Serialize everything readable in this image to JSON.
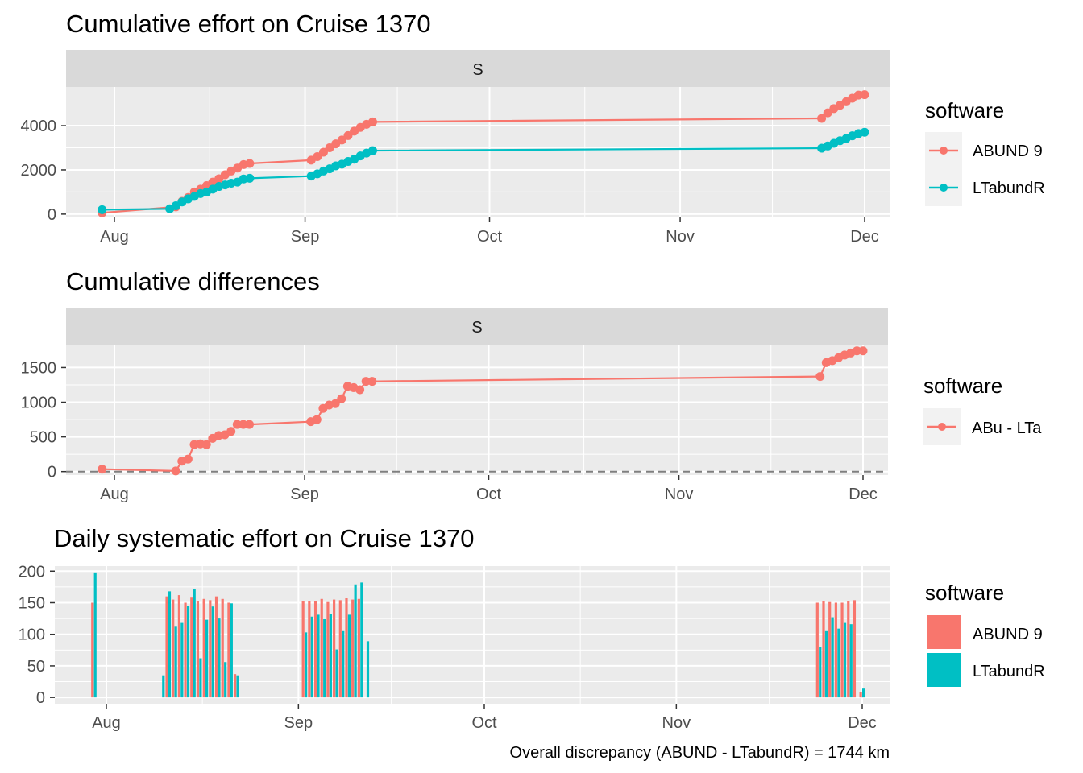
{
  "colors": {
    "abund": "#F8766D",
    "ltabundr": "#00BFC4",
    "panel_bg": "#EBEBEB",
    "strip_bg": "#D9D9D9",
    "grid": "#FFFFFF"
  },
  "chart_data": [
    {
      "type": "line",
      "title": "Cumulative effort on Cruise 1370",
      "facet": "S",
      "x_ticks": [
        "Aug",
        "Sep",
        "Oct",
        "Nov",
        "Dec"
      ],
      "y_ticks": [
        0,
        2000,
        4000
      ],
      "ylim": [
        -150,
        5750
      ],
      "legend": {
        "title": "software",
        "position": "right"
      },
      "series": [
        {
          "name": "ABUND 9",
          "color": "#F8766D",
          "x": [
            "2020-07-30",
            "2020-08-11",
            "2020-08-12",
            "2020-08-13",
            "2020-08-14",
            "2020-08-15",
            "2020-08-16",
            "2020-08-17",
            "2020-08-18",
            "2020-08-19",
            "2020-08-20",
            "2020-08-21",
            "2020-08-22",
            "2020-08-23",
            "2020-09-02",
            "2020-09-03",
            "2020-09-04",
            "2020-09-05",
            "2020-09-06",
            "2020-09-07",
            "2020-09-08",
            "2020-09-09",
            "2020-09-10",
            "2020-09-11",
            "2020-09-12",
            "2020-11-24",
            "2020-11-25",
            "2020-11-26",
            "2020-11-27",
            "2020-11-28",
            "2020-11-29",
            "2020-11-30",
            "2020-12-01"
          ],
          "y": [
            60,
            330,
            580,
            750,
            1000,
            1130,
            1290,
            1450,
            1600,
            1780,
            1950,
            2080,
            2240,
            2290,
            2440,
            2600,
            2800,
            3000,
            3180,
            3350,
            3550,
            3750,
            3920,
            4060,
            4170,
            4330,
            4580,
            4770,
            4920,
            5080,
            5240,
            5380,
            5400
          ]
        },
        {
          "name": "LTabundR",
          "color": "#00BFC4",
          "x": [
            "2020-07-30",
            "2020-08-10",
            "2020-08-11",
            "2020-08-12",
            "2020-08-13",
            "2020-08-14",
            "2020-08-15",
            "2020-08-16",
            "2020-08-17",
            "2020-08-18",
            "2020-08-19",
            "2020-08-20",
            "2020-08-21",
            "2020-08-22",
            "2020-08-23",
            "2020-09-02",
            "2020-09-03",
            "2020-09-04",
            "2020-09-05",
            "2020-09-06",
            "2020-09-07",
            "2020-09-08",
            "2020-09-09",
            "2020-09-10",
            "2020-09-11",
            "2020-09-12",
            "2020-11-24",
            "2020-11-25",
            "2020-11-26",
            "2020-11-27",
            "2020-11-28",
            "2020-11-29",
            "2020-11-30",
            "2020-12-01"
          ],
          "y": [
            200,
            240,
            380,
            550,
            690,
            800,
            930,
            1000,
            1130,
            1250,
            1320,
            1400,
            1450,
            1590,
            1620,
            1720,
            1820,
            1950,
            2050,
            2180,
            2260,
            2380,
            2480,
            2630,
            2760,
            2870,
            2980,
            3080,
            3200,
            3320,
            3420,
            3540,
            3640,
            3700
          ]
        }
      ]
    },
    {
      "type": "line",
      "title": "Cumulative differences",
      "facet": "S",
      "x_ticks": [
        "Aug",
        "Sep",
        "Oct",
        "Nov",
        "Dec"
      ],
      "y_ticks": [
        0,
        500,
        1000,
        1500
      ],
      "ylim": [
        -50,
        1830
      ],
      "reference_line": {
        "y": 0,
        "style": "dashed"
      },
      "legend": {
        "title": "software",
        "position": "right"
      },
      "series": [
        {
          "name": "ABu - LTa",
          "color": "#F8766D",
          "x": [
            "2020-07-30",
            "2020-08-11",
            "2020-08-12",
            "2020-08-13",
            "2020-08-14",
            "2020-08-15",
            "2020-08-16",
            "2020-08-17",
            "2020-08-18",
            "2020-08-19",
            "2020-08-20",
            "2020-08-21",
            "2020-08-22",
            "2020-08-23",
            "2020-09-02",
            "2020-09-03",
            "2020-09-04",
            "2020-09-05",
            "2020-09-06",
            "2020-09-07",
            "2020-09-08",
            "2020-09-09",
            "2020-09-10",
            "2020-09-11",
            "2020-09-12",
            "2020-11-24",
            "2020-11-25",
            "2020-11-26",
            "2020-11-27",
            "2020-11-28",
            "2020-11-29",
            "2020-11-30",
            "2020-12-01"
          ],
          "y": [
            35,
            10,
            150,
            180,
            390,
            400,
            390,
            480,
            520,
            530,
            580,
            680,
            680,
            680,
            720,
            750,
            910,
            960,
            980,
            1050,
            1230,
            1210,
            1180,
            1300,
            1300,
            1370,
            1570,
            1600,
            1640,
            1680,
            1710,
            1740,
            1740
          ]
        }
      ]
    },
    {
      "type": "bar",
      "title": "Daily systematic effort on Cruise 1370",
      "x_ticks": [
        "Aug",
        "Sep",
        "Oct",
        "Nov",
        "Dec"
      ],
      "y_ticks": [
        0,
        50,
        100,
        150,
        200
      ],
      "ylim": [
        -10,
        208
      ],
      "legend": {
        "title": "software",
        "position": "right"
      },
      "x": [
        "2020-07-30",
        "2020-08-10",
        "2020-08-11",
        "2020-08-12",
        "2020-08-13",
        "2020-08-14",
        "2020-08-15",
        "2020-08-16",
        "2020-08-17",
        "2020-08-18",
        "2020-08-19",
        "2020-08-20",
        "2020-08-21",
        "2020-08-22",
        "2020-08-23",
        "2020-09-02",
        "2020-09-03",
        "2020-09-04",
        "2020-09-05",
        "2020-09-06",
        "2020-09-07",
        "2020-09-08",
        "2020-09-09",
        "2020-09-10",
        "2020-09-11",
        "2020-09-12",
        "2020-11-24",
        "2020-11-25",
        "2020-11-26",
        "2020-11-27",
        "2020-11-28",
        "2020-11-29",
        "2020-11-30",
        "2020-12-01"
      ],
      "series": [
        {
          "name": "ABUND 9",
          "color": "#F8766D",
          "values": [
            150,
            0,
            160,
            155,
            162,
            150,
            158,
            152,
            156,
            154,
            160,
            156,
            150,
            37,
            0,
            152,
            153,
            153,
            156,
            151,
            155,
            154,
            157,
            155,
            156,
            0,
            150,
            153,
            151,
            150,
            150,
            152,
            154,
            8
          ]
        },
        {
          "name": "LTabundR",
          "color": "#00BFC4",
          "values": [
            198,
            35,
            168,
            112,
            118,
            145,
            171,
            62,
            123,
            144,
            125,
            56,
            149,
            35,
            0,
            103,
            128,
            131,
            124,
            132,
            76,
            105,
            131,
            179,
            182,
            89,
            80,
            105,
            127,
            109,
            118,
            116,
            0,
            14
          ]
        }
      ]
    }
  ],
  "legends": {
    "top": {
      "title": "software",
      "items": [
        "ABUND 9",
        "LTabundR"
      ]
    },
    "middle": {
      "title": "software",
      "items": [
        "ABu - LTa"
      ]
    },
    "bottom": {
      "title": "software",
      "items": [
        "ABUND 9",
        "LTabundR"
      ]
    }
  },
  "caption": "Overall discrepancy (ABUND - LTabundR) = 1744 km"
}
